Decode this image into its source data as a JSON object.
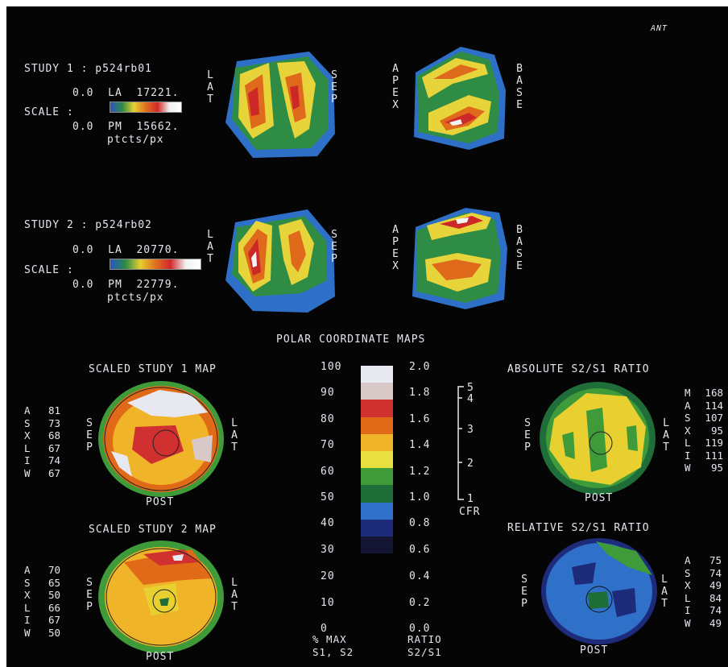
{
  "corner_label": "ANT",
  "study1": {
    "title": "STUDY 1 : p524rb01",
    "la_line": "0.0  LA  17221.",
    "scale_label": "SCALE :",
    "pm_line": "0.0  PM  15662.",
    "units": "ptcts/px",
    "lat": "L\nA\nT",
    "sep": "S\nE\nP",
    "apex": "A\nP\nE\nX",
    "base": "B\nA\nS\nE"
  },
  "study2": {
    "title": "STUDY 2 : p524rb02",
    "la_line": "0.0  LA  20770.",
    "scale_label": "SCALE :",
    "pm_line": "0.0  PM  22779.",
    "units": "ptcts/px",
    "lat": "L\nA\nT",
    "sep": "S\nE\nP",
    "apex": "A\nP\nE\nX",
    "base": "B\nA\nS\nE"
  },
  "polar_title": "POLAR COORDINATE MAPS",
  "scale_bar": {
    "percent_ticks": [
      "100",
      "90",
      "80",
      "70",
      "60",
      "50",
      "40",
      "30",
      "20",
      "10",
      "0"
    ],
    "percent_footer": "% MAX\nS1, S2",
    "ratio_ticks": [
      "2.0",
      "1.8",
      "1.6",
      "1.4",
      "1.2",
      "1.0",
      "0.8",
      "0.6",
      "0.4",
      "0.2",
      "0.0"
    ],
    "ratio_footer": "RATIO\nS2/S1",
    "cfr_ticks": [
      "5",
      "4",
      "3",
      "2",
      "1"
    ],
    "cfr_label": "CFR",
    "colors": [
      "#e8e8f0",
      "#d8c8c8",
      "#d03030",
      "#e06a18",
      "#f0b428",
      "#e8e040",
      "#3f9b3a",
      "#1f6e3a",
      "#2f70c8",
      "#1e2a7a",
      "#141433"
    ]
  },
  "map1": {
    "title": "SCALED STUDY 1 MAP",
    "letters": "A\nS\nX\nL\nI\nW",
    "values": "81\n73\n68\n67\n74\n67",
    "sep": "S\nE\nP",
    "lat": "L\nA\nT",
    "post": "POST"
  },
  "map2": {
    "title": "SCALED STUDY 2 MAP",
    "letters": "A\nS\nX\nL\nI\nW",
    "values": "70\n65\n50\n66\n67\n50",
    "sep": "S\nE\nP",
    "lat": "L\nA\nT",
    "post": "POST"
  },
  "abs_ratio": {
    "title": "ABSOLUTE S2/S1 RATIO",
    "letters": "M\nA\nS\nX\nL\nI\nW",
    "values": "168\n114\n107\n95\n119\n111\n95",
    "sep": "S\nE\nP",
    "lat": "L\nA\nT",
    "post": "POST"
  },
  "rel_ratio": {
    "title": "RELATIVE S2/S1 RATIO",
    "letters": "A\nS\nX\nL\nI\nW",
    "values": "75\n74\n49\n84\n74\n49",
    "sep": "S\nE\nP",
    "lat": "L\nA\nT",
    "post": "POST"
  }
}
